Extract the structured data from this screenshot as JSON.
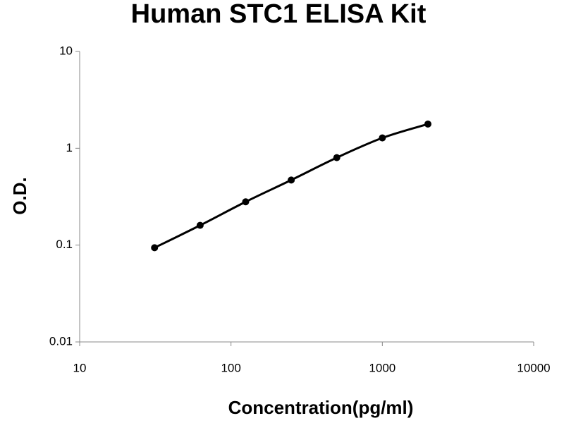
{
  "chart_data": {
    "type": "line",
    "title": "Human STC1 ELISA Kit",
    "x_label": "Concentration(pg/ml)",
    "y_label": "O.D.",
    "x": [
      31.25,
      62.5,
      125,
      250,
      500,
      1000,
      2000
    ],
    "values": [
      0.094,
      0.16,
      0.28,
      0.47,
      0.8,
      1.28,
      1.78
    ],
    "color": "#000000",
    "log_x": true,
    "log_y": true,
    "xlim": [
      10,
      10000
    ],
    "xticks": [
      10,
      100,
      1000,
      10000
    ],
    "ylim": [
      0.01,
      10
    ],
    "yticks": [
      0.01,
      0.1,
      1,
      10
    ]
  }
}
